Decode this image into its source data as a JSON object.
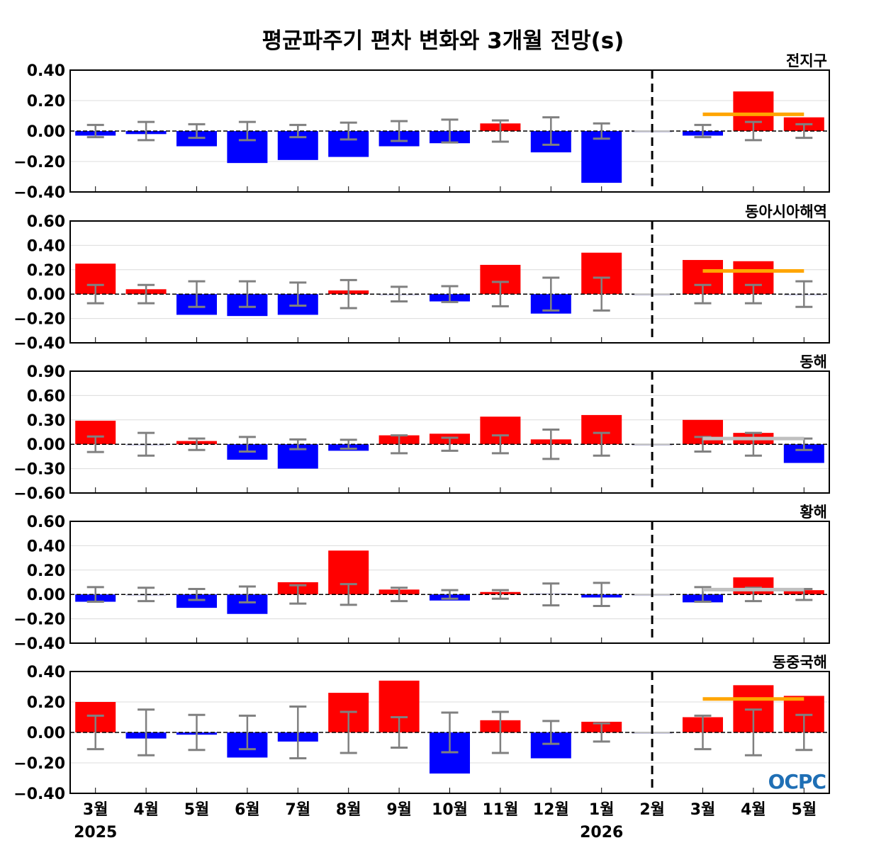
{
  "title": "평균파주기 편차 변화와 3개월 전망(s)",
  "logo_text": "OCPC",
  "colors": {
    "positive": "#ff0000",
    "negative": "#0000ff",
    "errorbar": "#808080",
    "forecast_orange": "#ffa500",
    "forecast_grey": "#c0c0c0"
  },
  "chart_data": [
    {
      "type": "bar",
      "title": "전지구",
      "ylim": [
        -0.4,
        0.4
      ],
      "yticks": [
        "0.40",
        "0.20",
        "0.00",
        "−0.20",
        "−0.40"
      ],
      "ytick_values": [
        0.4,
        0.2,
        0,
        -0.2,
        -0.4
      ],
      "categories": [
        "3월",
        "4월",
        "5월",
        "6월",
        "7월",
        "8월",
        "9월",
        "10월",
        "11월",
        "12월",
        "1월",
        "2월",
        "3월",
        "4월",
        "5월"
      ],
      "values": [
        -0.03,
        -0.02,
        -0.1,
        -0.21,
        -0.19,
        -0.17,
        -0.1,
        -0.08,
        0.05,
        -0.14,
        -0.34,
        0,
        -0.03,
        0.26,
        0.09
      ],
      "error": [
        0.04,
        0.06,
        0.045,
        0.06,
        0.04,
        0.055,
        0.065,
        0.075,
        0.07,
        0.09,
        0.05,
        null,
        0.04,
        0.06,
        0.045
      ],
      "forecast": {
        "value": 0.11,
        "color": "orange"
      }
    },
    {
      "type": "bar",
      "title": "동아시아해역",
      "ylim": [
        -0.4,
        0.6
      ],
      "yticks": [
        "0.60",
        "0.40",
        "0.20",
        "0.00",
        "−0.20",
        "−0.40"
      ],
      "ytick_values": [
        0.6,
        0.4,
        0.2,
        0,
        -0.2,
        -0.4
      ],
      "categories": [
        "3월",
        "4월",
        "5월",
        "6월",
        "7월",
        "8월",
        "9월",
        "10월",
        "11월",
        "12월",
        "1월",
        "2월",
        "3월",
        "4월",
        "5월"
      ],
      "values": [
        0.25,
        0.04,
        -0.17,
        -0.18,
        -0.17,
        0.03,
        -0.005,
        -0.06,
        0.24,
        -0.16,
        0.34,
        0,
        0.28,
        0.27,
        -0.01
      ],
      "error": [
        0.075,
        0.075,
        0.105,
        0.105,
        0.095,
        0.115,
        0.06,
        0.065,
        0.1,
        0.135,
        0.135,
        null,
        0.075,
        0.075,
        0.105
      ],
      "forecast": {
        "value": 0.19,
        "color": "orange"
      }
    },
    {
      "type": "bar",
      "title": "동해",
      "ylim": [
        -0.6,
        0.9
      ],
      "yticks": [
        "0.90",
        "0.60",
        "0.30",
        "0.00",
        "−0.30",
        "−0.60"
      ],
      "ytick_values": [
        0.9,
        0.6,
        0.3,
        0,
        -0.3,
        -0.6
      ],
      "categories": [
        "3월",
        "4월",
        "5월",
        "6월",
        "7월",
        "8월",
        "9월",
        "10월",
        "11월",
        "12월",
        "1월",
        "2월",
        "3월",
        "4월",
        "5월"
      ],
      "values": [
        0.29,
        0,
        0.04,
        -0.19,
        -0.3,
        -0.08,
        0.11,
        0.13,
        0.34,
        0.06,
        0.36,
        0,
        0.3,
        0.14,
        -0.23
      ],
      "error": [
        0.095,
        0.14,
        0.07,
        0.09,
        0.06,
        0.055,
        0.11,
        0.08,
        0.11,
        0.18,
        0.14,
        null,
        0.09,
        0.14,
        0.07
      ],
      "forecast": {
        "value": 0.07,
        "color": "grey"
      }
    },
    {
      "type": "bar",
      "title": "황해",
      "ylim": [
        -0.4,
        0.6
      ],
      "yticks": [
        "0.60",
        "0.40",
        "0.20",
        "0.00",
        "−0.20",
        "−0.40"
      ],
      "ytick_values": [
        0.6,
        0.4,
        0.2,
        0,
        -0.2,
        -0.4
      ],
      "categories": [
        "3월",
        "4월",
        "5월",
        "6월",
        "7월",
        "8월",
        "9월",
        "10월",
        "11월",
        "12월",
        "1월",
        "2월",
        "3월",
        "4월",
        "5월"
      ],
      "values": [
        -0.06,
        0,
        -0.11,
        -0.16,
        0.1,
        0.36,
        0.04,
        -0.05,
        0.02,
        0.01,
        -0.025,
        0,
        -0.065,
        0.14,
        0.035
      ],
      "error": [
        0.06,
        0.055,
        0.045,
        0.065,
        0.075,
        0.085,
        0.055,
        0.035,
        0.035,
        0.09,
        0.095,
        null,
        0.06,
        0.055,
        0.045
      ],
      "forecast": {
        "value": 0.04,
        "color": "grey"
      }
    },
    {
      "type": "bar",
      "title": "동중국해",
      "ylim": [
        -0.4,
        0.4
      ],
      "yticks": [
        "0.40",
        "0.20",
        "0.00",
        "−0.20",
        "−0.40"
      ],
      "ytick_values": [
        0.4,
        0.2,
        0,
        -0.2,
        -0.4
      ],
      "categories": [
        "3월",
        "4월",
        "5월",
        "6월",
        "7월",
        "8월",
        "9월",
        "10월",
        "11월",
        "12월",
        "1월",
        "2월",
        "3월",
        "4월",
        "5월"
      ],
      "values": [
        0.2,
        -0.04,
        -0.015,
        -0.165,
        -0.06,
        0.26,
        0.34,
        -0.27,
        0.08,
        -0.17,
        0.07,
        0,
        0.1,
        0.31,
        0.24
      ],
      "error": [
        0.11,
        0.15,
        0.115,
        0.11,
        0.17,
        0.135,
        0.1,
        0.13,
        0.135,
        0.075,
        0.06,
        null,
        0.11,
        0.15,
        0.115
      ],
      "forecast": {
        "value": 0.22,
        "color": "orange"
      }
    }
  ],
  "x_axis": {
    "labels": [
      "3월",
      "4월",
      "5월",
      "6월",
      "7월",
      "8월",
      "9월",
      "10월",
      "11월",
      "12월",
      "1월",
      "2월",
      "3월",
      "4월",
      "5월"
    ],
    "years": [
      {
        "label": "2025",
        "index": 0
      },
      {
        "label": "2026",
        "index": 10
      }
    ],
    "current_index": 11
  }
}
